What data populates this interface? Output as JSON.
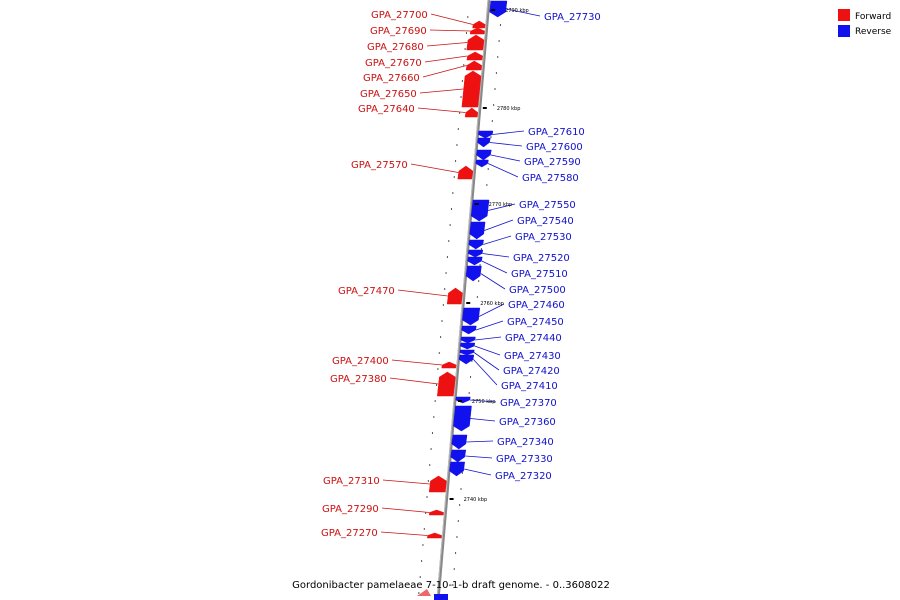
{
  "caption": "Gordonibacter pamelaeae 7-10-1-b draft genome. - 0..3608022",
  "legend": [
    {
      "label": "Forward",
      "color": "#ee1111"
    },
    {
      "label": "Reverse",
      "color": "#1111ee"
    }
  ],
  "colors": {
    "forward": "#ee1111",
    "reverse": "#1111ee",
    "axis": "#888888",
    "forward_label": "#cc1111",
    "reverse_label": "#1111cc"
  },
  "scale_marks": [
    {
      "label": "2790 kbp",
      "kbp": 2790
    },
    {
      "label": "2780 kbp",
      "kbp": 2780
    },
    {
      "label": "2770 kbp",
      "kbp": 2770
    },
    {
      "label": "2760 kbp",
      "kbp": 2760
    },
    {
      "label": "2750 kbp",
      "kbp": 2750
    },
    {
      "label": "2740 kbp",
      "kbp": 2740
    }
  ],
  "genes": [
    {
      "id": "GPA_27730",
      "strand": "reverse"
    },
    {
      "id": "GPA_27700",
      "strand": "forward"
    },
    {
      "id": "GPA_27690",
      "strand": "forward"
    },
    {
      "id": "GPA_27680",
      "strand": "forward"
    },
    {
      "id": "GPA_27670",
      "strand": "forward"
    },
    {
      "id": "GPA_27660",
      "strand": "forward"
    },
    {
      "id": "GPA_27650",
      "strand": "forward"
    },
    {
      "id": "GPA_27640",
      "strand": "forward"
    },
    {
      "id": "GPA_27610",
      "strand": "reverse"
    },
    {
      "id": "GPA_27600",
      "strand": "reverse"
    },
    {
      "id": "GPA_27590",
      "strand": "reverse"
    },
    {
      "id": "GPA_27580",
      "strand": "reverse"
    },
    {
      "id": "GPA_27570",
      "strand": "forward"
    },
    {
      "id": "GPA_27550",
      "strand": "reverse"
    },
    {
      "id": "GPA_27540",
      "strand": "reverse"
    },
    {
      "id": "GPA_27530",
      "strand": "reverse"
    },
    {
      "id": "GPA_27520",
      "strand": "reverse"
    },
    {
      "id": "GPA_27510",
      "strand": "reverse"
    },
    {
      "id": "GPA_27500",
      "strand": "reverse"
    },
    {
      "id": "GPA_27470",
      "strand": "forward"
    },
    {
      "id": "GPA_27460",
      "strand": "reverse"
    },
    {
      "id": "GPA_27450",
      "strand": "reverse"
    },
    {
      "id": "GPA_27440",
      "strand": "reverse"
    },
    {
      "id": "GPA_27430",
      "strand": "reverse"
    },
    {
      "id": "GPA_27420",
      "strand": "reverse"
    },
    {
      "id": "GPA_27410",
      "strand": "reverse"
    },
    {
      "id": "GPA_27400",
      "strand": "forward"
    },
    {
      "id": "GPA_27380",
      "strand": "forward"
    },
    {
      "id": "GPA_27370",
      "strand": "reverse"
    },
    {
      "id": "GPA_27360",
      "strand": "reverse"
    },
    {
      "id": "GPA_27340",
      "strand": "reverse"
    },
    {
      "id": "GPA_27330",
      "strand": "reverse"
    },
    {
      "id": "GPA_27320",
      "strand": "reverse"
    },
    {
      "id": "GPA_27310",
      "strand": "forward"
    },
    {
      "id": "GPA_27290",
      "strand": "forward"
    },
    {
      "id": "GPA_27270",
      "strand": "forward"
    }
  ]
}
